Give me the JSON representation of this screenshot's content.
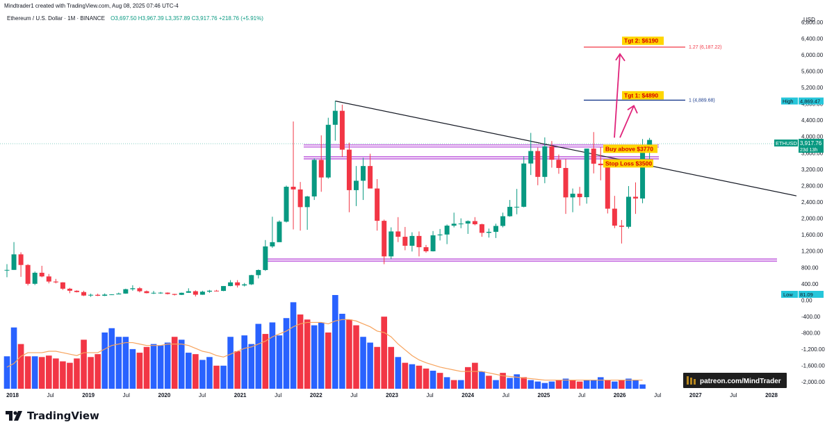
{
  "header": {
    "credit": "Mindtrader1 created with TradingView.com, Aug 08, 2025 07:46 UTC-4",
    "symbol": "Ethereum / U.S. Dollar · 1M · BINANCE",
    "ohlc": "O3,697.50  H3,967.39  L3,357.89  C3,917.76  +218.76 (+5.91%)"
  },
  "footer": {
    "brand": "TradingView"
  },
  "colors": {
    "up": "#089981",
    "down": "#f23645",
    "vol_up": "#2962ff",
    "vol_down": "#f23645",
    "ma": "#f7a35c",
    "level": "#b23ad6",
    "fib_top": "#f23645",
    "fib_1": "#1e3f8f",
    "arrow": "#e0237a",
    "label_bg": "#ffd600",
    "label_fg": "#d50000"
  },
  "chart_data": {
    "type": "candlestick",
    "title": "Ethereum / U.S. Dollar · 1M · BINANCE",
    "price_axis": {
      "unit": "USD",
      "ticks": [
        "6,800.00",
        "6,400.00",
        "6,000.00",
        "5,600.00",
        "5,200.00",
        "4,800.00",
        "4,400.00",
        "4,000.00",
        "3,600.00",
        "3,200.00",
        "2,800.00",
        "2,400.00",
        "2,000.00",
        "1,600.00",
        "1,200.00",
        "800.00",
        "400.00",
        "0.00",
        "-400.00",
        "-800.00",
        "-1,200.00",
        "-1,600.00",
        "-2,000.00"
      ],
      "range": [
        -2200,
        7000
      ]
    },
    "time_axis": {
      "ticks": [
        "2018",
        "Jul",
        "2019",
        "Jul",
        "2020",
        "Jul",
        "2021",
        "Jul",
        "2022",
        "Jul",
        "2023",
        "Jul",
        "2024",
        "Jul",
        "2025",
        "Jul",
        "2026",
        "Jul",
        "2027",
        "Jul",
        "2028"
      ],
      "range": [
        "2017-12",
        "2028-03"
      ]
    },
    "ohlc_monthly": [
      {
        "t": "2017-12",
        "o": 730,
        "h": 880,
        "l": 560,
        "c": 740
      },
      {
        "t": "2018-01",
        "o": 740,
        "h": 1420,
        "l": 740,
        "c": 1120
      },
      {
        "t": "2018-02",
        "o": 1120,
        "h": 1170,
        "l": 570,
        "c": 860
      },
      {
        "t": "2018-03",
        "o": 860,
        "h": 880,
        "l": 360,
        "c": 400
      },
      {
        "t": "2018-04",
        "o": 400,
        "h": 700,
        "l": 370,
        "c": 670
      },
      {
        "t": "2018-05",
        "o": 670,
        "h": 840,
        "l": 560,
        "c": 580
      },
      {
        "t": "2018-06",
        "o": 580,
        "h": 640,
        "l": 410,
        "c": 455
      },
      {
        "t": "2018-07",
        "o": 455,
        "h": 520,
        "l": 410,
        "c": 435
      },
      {
        "t": "2018-08",
        "o": 435,
        "h": 440,
        "l": 250,
        "c": 280
      },
      {
        "t": "2018-09",
        "o": 280,
        "h": 300,
        "l": 170,
        "c": 230
      },
      {
        "t": "2018-10",
        "o": 230,
        "h": 240,
        "l": 190,
        "c": 198
      },
      {
        "t": "2018-11",
        "o": 198,
        "h": 230,
        "l": 100,
        "c": 113
      },
      {
        "t": "2018-12",
        "o": 113,
        "h": 160,
        "l": 80,
        "c": 131
      },
      {
        "t": "2019-01",
        "o": 131,
        "h": 160,
        "l": 100,
        "c": 107
      },
      {
        "t": "2019-02",
        "o": 107,
        "h": 165,
        "l": 100,
        "c": 136
      },
      {
        "t": "2019-03",
        "o": 136,
        "h": 145,
        "l": 126,
        "c": 141
      },
      {
        "t": "2019-04",
        "o": 141,
        "h": 185,
        "l": 150,
        "c": 161
      },
      {
        "t": "2019-05",
        "o": 161,
        "h": 280,
        "l": 155,
        "c": 268
      },
      {
        "t": "2019-06",
        "o": 268,
        "h": 365,
        "l": 230,
        "c": 291
      },
      {
        "t": "2019-07",
        "o": 291,
        "h": 320,
        "l": 190,
        "c": 218
      },
      {
        "t": "2019-08",
        "o": 218,
        "h": 235,
        "l": 165,
        "c": 172
      },
      {
        "t": "2019-09",
        "o": 172,
        "h": 225,
        "l": 150,
        "c": 180
      },
      {
        "t": "2019-10",
        "o": 180,
        "h": 200,
        "l": 155,
        "c": 183
      },
      {
        "t": "2019-11",
        "o": 183,
        "h": 190,
        "l": 140,
        "c": 151
      },
      {
        "t": "2019-12",
        "o": 151,
        "h": 155,
        "l": 115,
        "c": 130
      },
      {
        "t": "2020-01",
        "o": 130,
        "h": 185,
        "l": 125,
        "c": 180
      },
      {
        "t": "2020-02",
        "o": 180,
        "h": 290,
        "l": 180,
        "c": 218
      },
      {
        "t": "2020-03",
        "o": 218,
        "h": 240,
        "l": 90,
        "c": 133
      },
      {
        "t": "2020-04",
        "o": 133,
        "h": 230,
        "l": 130,
        "c": 207
      },
      {
        "t": "2020-05",
        "o": 207,
        "h": 250,
        "l": 180,
        "c": 231
      },
      {
        "t": "2020-06",
        "o": 231,
        "h": 250,
        "l": 215,
        "c": 226
      },
      {
        "t": "2020-07",
        "o": 226,
        "h": 345,
        "l": 220,
        "c": 345
      },
      {
        "t": "2020-08",
        "o": 345,
        "h": 490,
        "l": 340,
        "c": 435
      },
      {
        "t": "2020-09",
        "o": 435,
        "h": 490,
        "l": 310,
        "c": 360
      },
      {
        "t": "2020-10",
        "o": 360,
        "h": 420,
        "l": 335,
        "c": 386
      },
      {
        "t": "2020-11",
        "o": 386,
        "h": 620,
        "l": 370,
        "c": 612
      },
      {
        "t": "2020-12",
        "o": 612,
        "h": 750,
        "l": 530,
        "c": 737
      },
      {
        "t": "2021-01",
        "o": 737,
        "h": 1470,
        "l": 715,
        "c": 1314
      },
      {
        "t": "2021-02",
        "o": 1314,
        "h": 2040,
        "l": 1280,
        "c": 1418
      },
      {
        "t": "2021-03",
        "o": 1418,
        "h": 1950,
        "l": 1450,
        "c": 1919
      },
      {
        "t": "2021-04",
        "o": 1919,
        "h": 2800,
        "l": 1900,
        "c": 2773
      },
      {
        "t": "2021-05",
        "o": 2773,
        "h": 4370,
        "l": 1730,
        "c": 2707
      },
      {
        "t": "2021-06",
        "o": 2707,
        "h": 2890,
        "l": 1700,
        "c": 2275
      },
      {
        "t": "2021-07",
        "o": 2275,
        "h": 2550,
        "l": 1720,
        "c": 2536
      },
      {
        "t": "2021-08",
        "o": 2536,
        "h": 3470,
        "l": 2450,
        "c": 3430
      },
      {
        "t": "2021-09",
        "o": 3430,
        "h": 4030,
        "l": 2650,
        "c": 3000
      },
      {
        "t": "2021-10",
        "o": 3000,
        "h": 4460,
        "l": 2970,
        "c": 4288
      },
      {
        "t": "2021-11",
        "o": 4288,
        "h": 4870,
        "l": 3900,
        "c": 4630
      },
      {
        "t": "2021-12",
        "o": 4630,
        "h": 4780,
        "l": 3500,
        "c": 3680
      },
      {
        "t": "2022-01",
        "o": 3680,
        "h": 3850,
        "l": 2150,
        "c": 2690
      },
      {
        "t": "2022-02",
        "o": 2690,
        "h": 3280,
        "l": 2300,
        "c": 2920
      },
      {
        "t": "2022-03",
        "o": 2920,
        "h": 3480,
        "l": 2450,
        "c": 3280
      },
      {
        "t": "2022-04",
        "o": 3280,
        "h": 3580,
        "l": 2780,
        "c": 2730
      },
      {
        "t": "2022-05",
        "o": 2730,
        "h": 2960,
        "l": 1700,
        "c": 1940
      },
      {
        "t": "2022-06",
        "o": 1940,
        "h": 1970,
        "l": 880,
        "c": 1070
      },
      {
        "t": "2022-07",
        "o": 1070,
        "h": 1780,
        "l": 1000,
        "c": 1680
      },
      {
        "t": "2022-08",
        "o": 1680,
        "h": 2030,
        "l": 1420,
        "c": 1550
      },
      {
        "t": "2022-09",
        "o": 1550,
        "h": 1790,
        "l": 1220,
        "c": 1330
      },
      {
        "t": "2022-10",
        "o": 1330,
        "h": 1660,
        "l": 1190,
        "c": 1570
      },
      {
        "t": "2022-11",
        "o": 1570,
        "h": 1680,
        "l": 1070,
        "c": 1295
      },
      {
        "t": "2022-12",
        "o": 1295,
        "h": 1350,
        "l": 1160,
        "c": 1195
      },
      {
        "t": "2023-01",
        "o": 1195,
        "h": 1690,
        "l": 1190,
        "c": 1585
      },
      {
        "t": "2023-02",
        "o": 1585,
        "h": 1740,
        "l": 1460,
        "c": 1605
      },
      {
        "t": "2023-03",
        "o": 1605,
        "h": 1850,
        "l": 1370,
        "c": 1822
      },
      {
        "t": "2023-04",
        "o": 1822,
        "h": 2140,
        "l": 1780,
        "c": 1869
      },
      {
        "t": "2023-05",
        "o": 1869,
        "h": 2000,
        "l": 1760,
        "c": 1873
      },
      {
        "t": "2023-06",
        "o": 1873,
        "h": 1950,
        "l": 1620,
        "c": 1933
      },
      {
        "t": "2023-07",
        "o": 1933,
        "h": 2030,
        "l": 1830,
        "c": 1856
      },
      {
        "t": "2023-08",
        "o": 1856,
        "h": 1870,
        "l": 1550,
        "c": 1646
      },
      {
        "t": "2023-09",
        "o": 1646,
        "h": 1750,
        "l": 1530,
        "c": 1671
      },
      {
        "t": "2023-10",
        "o": 1671,
        "h": 1870,
        "l": 1520,
        "c": 1815
      },
      {
        "t": "2023-11",
        "o": 1815,
        "h": 2140,
        "l": 1780,
        "c": 2052
      },
      {
        "t": "2023-12",
        "o": 2052,
        "h": 2450,
        "l": 2040,
        "c": 2282
      },
      {
        "t": "2024-01",
        "o": 2282,
        "h": 2720,
        "l": 2100,
        "c": 2283
      },
      {
        "t": "2024-02",
        "o": 2283,
        "h": 3520,
        "l": 2270,
        "c": 3341
      },
      {
        "t": "2024-03",
        "o": 3341,
        "h": 4090,
        "l": 3060,
        "c": 3647
      },
      {
        "t": "2024-04",
        "o": 3647,
        "h": 3730,
        "l": 2810,
        "c": 3014
      },
      {
        "t": "2024-05",
        "o": 3014,
        "h": 3980,
        "l": 2860,
        "c": 3762
      },
      {
        "t": "2024-06",
        "o": 3762,
        "h": 3890,
        "l": 3240,
        "c": 3433
      },
      {
        "t": "2024-07",
        "o": 3433,
        "h": 3560,
        "l": 3090,
        "c": 3232
      },
      {
        "t": "2024-08",
        "o": 3232,
        "h": 3450,
        "l": 2110,
        "c": 2513
      },
      {
        "t": "2024-09",
        "o": 2513,
        "h": 2730,
        "l": 2150,
        "c": 2603
      },
      {
        "t": "2024-10",
        "o": 2603,
        "h": 2770,
        "l": 2310,
        "c": 2518
      },
      {
        "t": "2024-11",
        "o": 2518,
        "h": 3680,
        "l": 2360,
        "c": 3706
      },
      {
        "t": "2024-12",
        "o": 3706,
        "h": 4110,
        "l": 3100,
        "c": 3337
      },
      {
        "t": "2025-01",
        "o": 3337,
        "h": 3740,
        "l": 2930,
        "c": 3300
      },
      {
        "t": "2025-02",
        "o": 3300,
        "h": 3440,
        "l": 2120,
        "c": 2237
      },
      {
        "t": "2025-03",
        "o": 2237,
        "h": 2550,
        "l": 1760,
        "c": 1822
      },
      {
        "t": "2025-04",
        "o": 1822,
        "h": 1960,
        "l": 1385,
        "c": 1794
      },
      {
        "t": "2025-05",
        "o": 1794,
        "h": 2790,
        "l": 1750,
        "c": 2528
      },
      {
        "t": "2025-06",
        "o": 2528,
        "h": 2880,
        "l": 2110,
        "c": 2486
      },
      {
        "t": "2025-07",
        "o": 2486,
        "h": 3940,
        "l": 2370,
        "c": 3697
      },
      {
        "t": "2025-08",
        "o": 3697,
        "h": 3967.39,
        "l": 3357.89,
        "c": 3917.76
      }
    ],
    "volume_monthly": [
      {
        "v": 0.45,
        "up": true
      },
      {
        "v": 0.85,
        "up": true
      },
      {
        "v": 0.62,
        "up": false
      },
      {
        "v": 0.45,
        "up": false
      },
      {
        "v": 0.45,
        "up": true
      },
      {
        "v": 0.44,
        "up": false
      },
      {
        "v": 0.46,
        "up": false
      },
      {
        "v": 0.42,
        "up": false
      },
      {
        "v": 0.38,
        "up": false
      },
      {
        "v": 0.36,
        "up": false
      },
      {
        "v": 0.42,
        "up": false
      },
      {
        "v": 0.68,
        "up": false
      },
      {
        "v": 0.44,
        "up": false
      },
      {
        "v": 0.48,
        "up": false
      },
      {
        "v": 0.78,
        "up": true
      },
      {
        "v": 0.84,
        "up": true
      },
      {
        "v": 0.72,
        "up": true
      },
      {
        "v": 0.72,
        "up": true
      },
      {
        "v": 0.55,
        "up": true
      },
      {
        "v": 0.5,
        "up": false
      },
      {
        "v": 0.58,
        "up": false
      },
      {
        "v": 0.62,
        "up": true
      },
      {
        "v": 0.6,
        "up": true
      },
      {
        "v": 0.64,
        "up": true
      },
      {
        "v": 0.72,
        "up": false
      },
      {
        "v": 0.68,
        "up": true
      },
      {
        "v": 0.5,
        "up": true
      },
      {
        "v": 0.48,
        "up": false
      },
      {
        "v": 0.4,
        "up": true
      },
      {
        "v": 0.44,
        "up": true
      },
      {
        "v": 0.32,
        "up": false
      },
      {
        "v": 0.32,
        "up": true
      },
      {
        "v": 0.72,
        "up": true
      },
      {
        "v": 0.52,
        "up": false
      },
      {
        "v": 0.74,
        "up": true
      },
      {
        "v": 0.62,
        "up": true
      },
      {
        "v": 0.9,
        "up": true
      },
      {
        "v": 0.76,
        "up": false
      },
      {
        "v": 0.92,
        "up": true
      },
      {
        "v": 0.74,
        "up": true
      },
      {
        "v": 0.98,
        "up": true
      },
      {
        "v": 1.2,
        "up": true
      },
      {
        "v": 1.03,
        "up": false
      },
      {
        "v": 0.96,
        "up": false
      },
      {
        "v": 0.88,
        "up": true
      },
      {
        "v": 0.92,
        "up": true
      },
      {
        "v": 0.78,
        "up": false
      },
      {
        "v": 1.3,
        "up": true
      },
      {
        "v": 1.04,
        "up": true
      },
      {
        "v": 0.96,
        "up": false
      },
      {
        "v": 0.88,
        "up": false
      },
      {
        "v": 0.72,
        "up": true
      },
      {
        "v": 0.64,
        "up": true
      },
      {
        "v": 0.58,
        "up": false
      },
      {
        "v": 1.0,
        "up": false
      },
      {
        "v": 0.58,
        "up": false
      },
      {
        "v": 0.44,
        "up": true
      },
      {
        "v": 0.36,
        "up": false
      },
      {
        "v": 0.34,
        "up": true
      },
      {
        "v": 0.32,
        "up": false
      },
      {
        "v": 0.28,
        "up": false
      },
      {
        "v": 0.25,
        "up": true
      },
      {
        "v": 0.22,
        "up": false
      },
      {
        "v": 0.16,
        "up": true
      },
      {
        "v": 0.12,
        "up": false
      },
      {
        "v": 0.12,
        "up": true
      },
      {
        "v": 0.3,
        "up": false
      },
      {
        "v": 0.36,
        "up": false
      },
      {
        "v": 0.24,
        "up": true
      },
      {
        "v": 0.18,
        "up": false
      },
      {
        "v": 0.12,
        "up": true
      },
      {
        "v": 0.22,
        "up": false
      },
      {
        "v": 0.15,
        "up": true
      },
      {
        "v": 0.2,
        "up": true
      },
      {
        "v": 0.16,
        "up": false
      },
      {
        "v": 0.12,
        "up": true
      },
      {
        "v": 0.1,
        "up": true
      },
      {
        "v": 0.08,
        "up": true
      },
      {
        "v": 0.1,
        "up": true
      },
      {
        "v": 0.12,
        "up": false
      },
      {
        "v": 0.14,
        "up": true
      },
      {
        "v": 0.12,
        "up": false
      },
      {
        "v": 0.1,
        "up": false
      },
      {
        "v": 0.12,
        "up": true
      },
      {
        "v": 0.12,
        "up": true
      },
      {
        "v": 0.16,
        "up": true
      },
      {
        "v": 0.12,
        "up": false
      },
      {
        "v": 0.1,
        "up": true
      },
      {
        "v": 0.12,
        "up": false
      },
      {
        "v": 0.14,
        "up": true
      },
      {
        "v": 0.12,
        "up": true
      },
      {
        "v": 0.06,
        "up": true
      }
    ],
    "volume_ma": [
      0.3,
      0.35,
      0.45,
      0.5,
      0.5,
      0.5,
      0.52,
      0.52,
      0.5,
      0.48,
      0.46,
      0.5,
      0.5,
      0.5,
      0.55,
      0.6,
      0.62,
      0.64,
      0.64,
      0.62,
      0.6,
      0.6,
      0.6,
      0.62,
      0.62,
      0.62,
      0.6,
      0.56,
      0.52,
      0.5,
      0.46,
      0.44,
      0.48,
      0.52,
      0.56,
      0.58,
      0.62,
      0.66,
      0.72,
      0.76,
      0.8,
      0.86,
      0.9,
      0.92,
      0.92,
      0.92,
      0.9,
      0.94,
      0.96,
      0.96,
      0.94,
      0.9,
      0.86,
      0.8,
      0.78,
      0.72,
      0.62,
      0.54,
      0.46,
      0.4,
      0.36,
      0.33,
      0.3,
      0.28,
      0.26,
      0.24,
      0.24,
      0.24,
      0.24,
      0.22,
      0.2,
      0.18,
      0.17,
      0.16,
      0.15,
      0.14,
      0.13,
      0.12,
      0.12,
      0.12,
      0.12,
      0.12,
      0.12,
      0.12,
      0.12,
      0.12,
      0.12,
      0.12,
      0.12,
      0.12,
      0.12,
      0.12
    ],
    "trendline": {
      "from": {
        "t": "2021-11",
        "price": 4870
      },
      "to": {
        "t": "2028-02",
        "price": 2550
      }
    },
    "horizontal_levels": [
      {
        "price": 3770,
        "style": "double"
      },
      {
        "price": 3480,
        "style": "double"
      },
      {
        "price": 980,
        "style": "double",
        "from": "2021-01"
      }
    ],
    "fib_levels": [
      {
        "ratio_label": "1.27 (6,187.22)",
        "price": 6187.22,
        "color": "red"
      },
      {
        "ratio_label": "1 (4,889.68)",
        "price": 4889.68,
        "color": "blue"
      }
    ],
    "annotations": {
      "targets": [
        {
          "text": "Tgt 2: $6190",
          "price": 6190
        },
        {
          "text": "Tgt 1: $4890",
          "price": 4890
        }
      ],
      "buy": "Buy above $3770",
      "stop": "Stop Loss $3500",
      "watermark": "patreon.com/MindTrader"
    },
    "price_labels": {
      "symbol": "ETHUSD",
      "last": "3,917.76",
      "countdown": "23d 13h",
      "high_label": "High",
      "high_value": "4,869.47",
      "low_label": "Low",
      "low_value": "81.09"
    }
  }
}
